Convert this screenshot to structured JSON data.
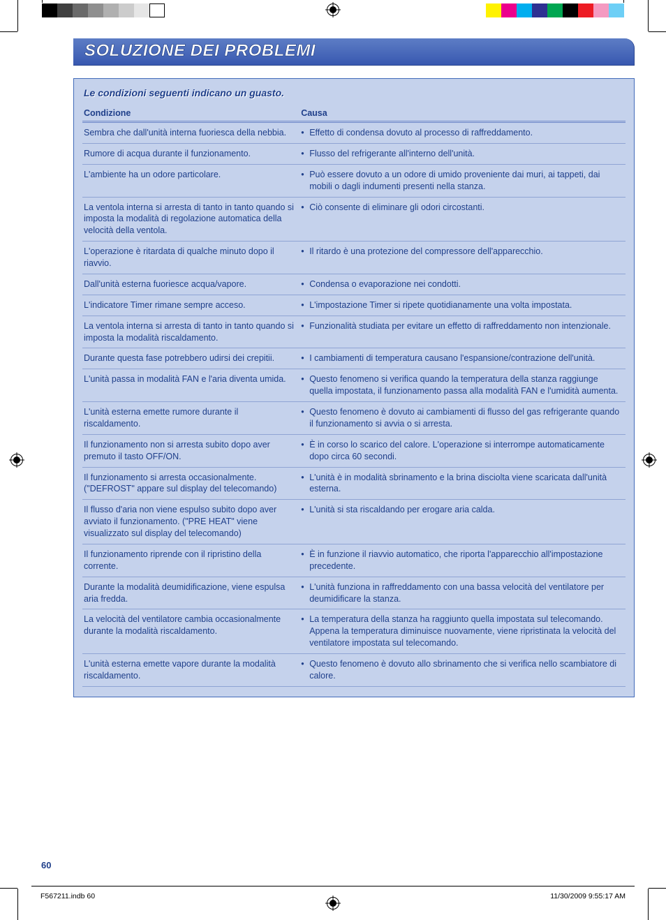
{
  "title": "SOLUZIONE DEI PROBLEMI",
  "subtitle": "Le condizioni seguenti indicano un guasto.",
  "columns": {
    "condition": "Condizione",
    "cause": "Causa"
  },
  "rows": [
    {
      "cond": "Sembra che dall'unità interna fuoriesca della nebbia.",
      "cause": "Effetto di condensa dovuto al processo di raffreddamento."
    },
    {
      "cond": "Rumore di acqua durante il funzionamento.",
      "cause": "Flusso del refrigerante all'interno dell'unità."
    },
    {
      "cond": "L'ambiente ha un odore particolare.",
      "cause": "Può essere dovuto a un odore di umido proveniente dai muri, ai tappeti, dai mobili o dagli indumenti presenti nella stanza."
    },
    {
      "cond": "La ventola interna si arresta di tanto in tanto quando si imposta la modalità di regolazione automatica della velocità della ventola.",
      "cause": "Ciò consente di eliminare gli odori circostanti."
    },
    {
      "cond": "L'operazione è ritardata di qualche minuto dopo il riavvio.",
      "cause": "Il ritardo è una protezione del compressore dell'apparecchio."
    },
    {
      "cond": "Dall'unità esterna fuoriesce acqua/vapore.",
      "cause": "Condensa o evaporazione nei condotti."
    },
    {
      "cond": "L'indicatore Timer rimane sempre acceso.",
      "cause": "L'impostazione Timer si ripete quotidianamente una volta impostata."
    },
    {
      "cond": "La ventola interna si arresta di tanto in tanto quando si imposta la modalità riscaldamento.",
      "cause": "Funzionalità studiata per evitare un effetto di raffreddamento non intenzionale."
    },
    {
      "cond": "Durante questa fase potrebbero udirsi dei crepitii.",
      "cause": "I cambiamenti di temperatura causano l'espansione/contrazione dell'unità."
    },
    {
      "cond": "L'unità passa in modalità FAN e l'aria diventa umida.",
      "cause": "Questo fenomeno si verifica quando la temperatura della stanza raggiunge quella impostata, il funzionamento passa alla modalità FAN e l'umidità aumenta."
    },
    {
      "cond": "L'unità esterna emette rumore durante il riscaldamento.",
      "cause": "Questo fenomeno è dovuto ai cambiamenti di flusso del gas refrigerante quando il funzionamento si avvia o si arresta."
    },
    {
      "cond": "Il funzionamento non si arresta subito dopo aver premuto il tasto OFF/ON.",
      "cause": "È in corso lo scarico del calore. L'operazione si interrompe automaticamente dopo circa 60 secondi."
    },
    {
      "cond": "Il funzionamento si arresta occasionalmente. (\"DEFROST\" appare sul display del telecomando)",
      "cause": "L'unità è in modalità sbrinamento e la brina disciolta viene scaricata dall'unità esterna."
    },
    {
      "cond": "Il flusso d'aria non viene espulso subito dopo aver avviato il funzionamento. (\"PRE HEAT\" viene visualizzato sul display del telecomando)",
      "cause": "L'unità si sta riscaldando per erogare aria calda."
    },
    {
      "cond": "Il funzionamento riprende con il ripristino della corrente.",
      "cause": "È in funzione il riavvio automatico, che riporta l'apparecchio all'impostazione precedente."
    },
    {
      "cond": "Durante la modalità deumidificazione, viene espulsa aria fredda.",
      "cause": "L'unità funziona in raffreddamento con una bassa velocità del ventilatore per deumidificare la stanza."
    },
    {
      "cond": "La velocità del ventilatore cambia occasionalmente durante la modalità riscaldamento.",
      "cause": "La temperatura della stanza ha raggiunto quella impostata sul telecomando. Appena la temperatura diminuisce nuovamente, viene ripristinata la velocità del ventilatore impostata sul telecomando."
    },
    {
      "cond": "L'unità esterna emette vapore durante la modalità riscaldamento.",
      "cause": "Questo fenomeno è dovuto allo sbrinamento che si verifica nello scambiatore di calore."
    }
  ],
  "page_number": "60",
  "footer": {
    "file": "F567211.indb   60",
    "timestamp": "11/30/2009   9:55:17 AM"
  },
  "print_marks": {
    "left_swatches": [
      "#000000",
      "#404040",
      "#6a6a6a",
      "#8f8f8f",
      "#b0b0b0",
      "#cccccc",
      "#e6e6e6",
      "#ffffff"
    ],
    "right_swatches": [
      "#fff200",
      "#ec008c",
      "#00aeef",
      "#2e3192",
      "#00a651",
      "#000000",
      "#ed1c24",
      "#f49ac1",
      "#6dcff6"
    ]
  }
}
